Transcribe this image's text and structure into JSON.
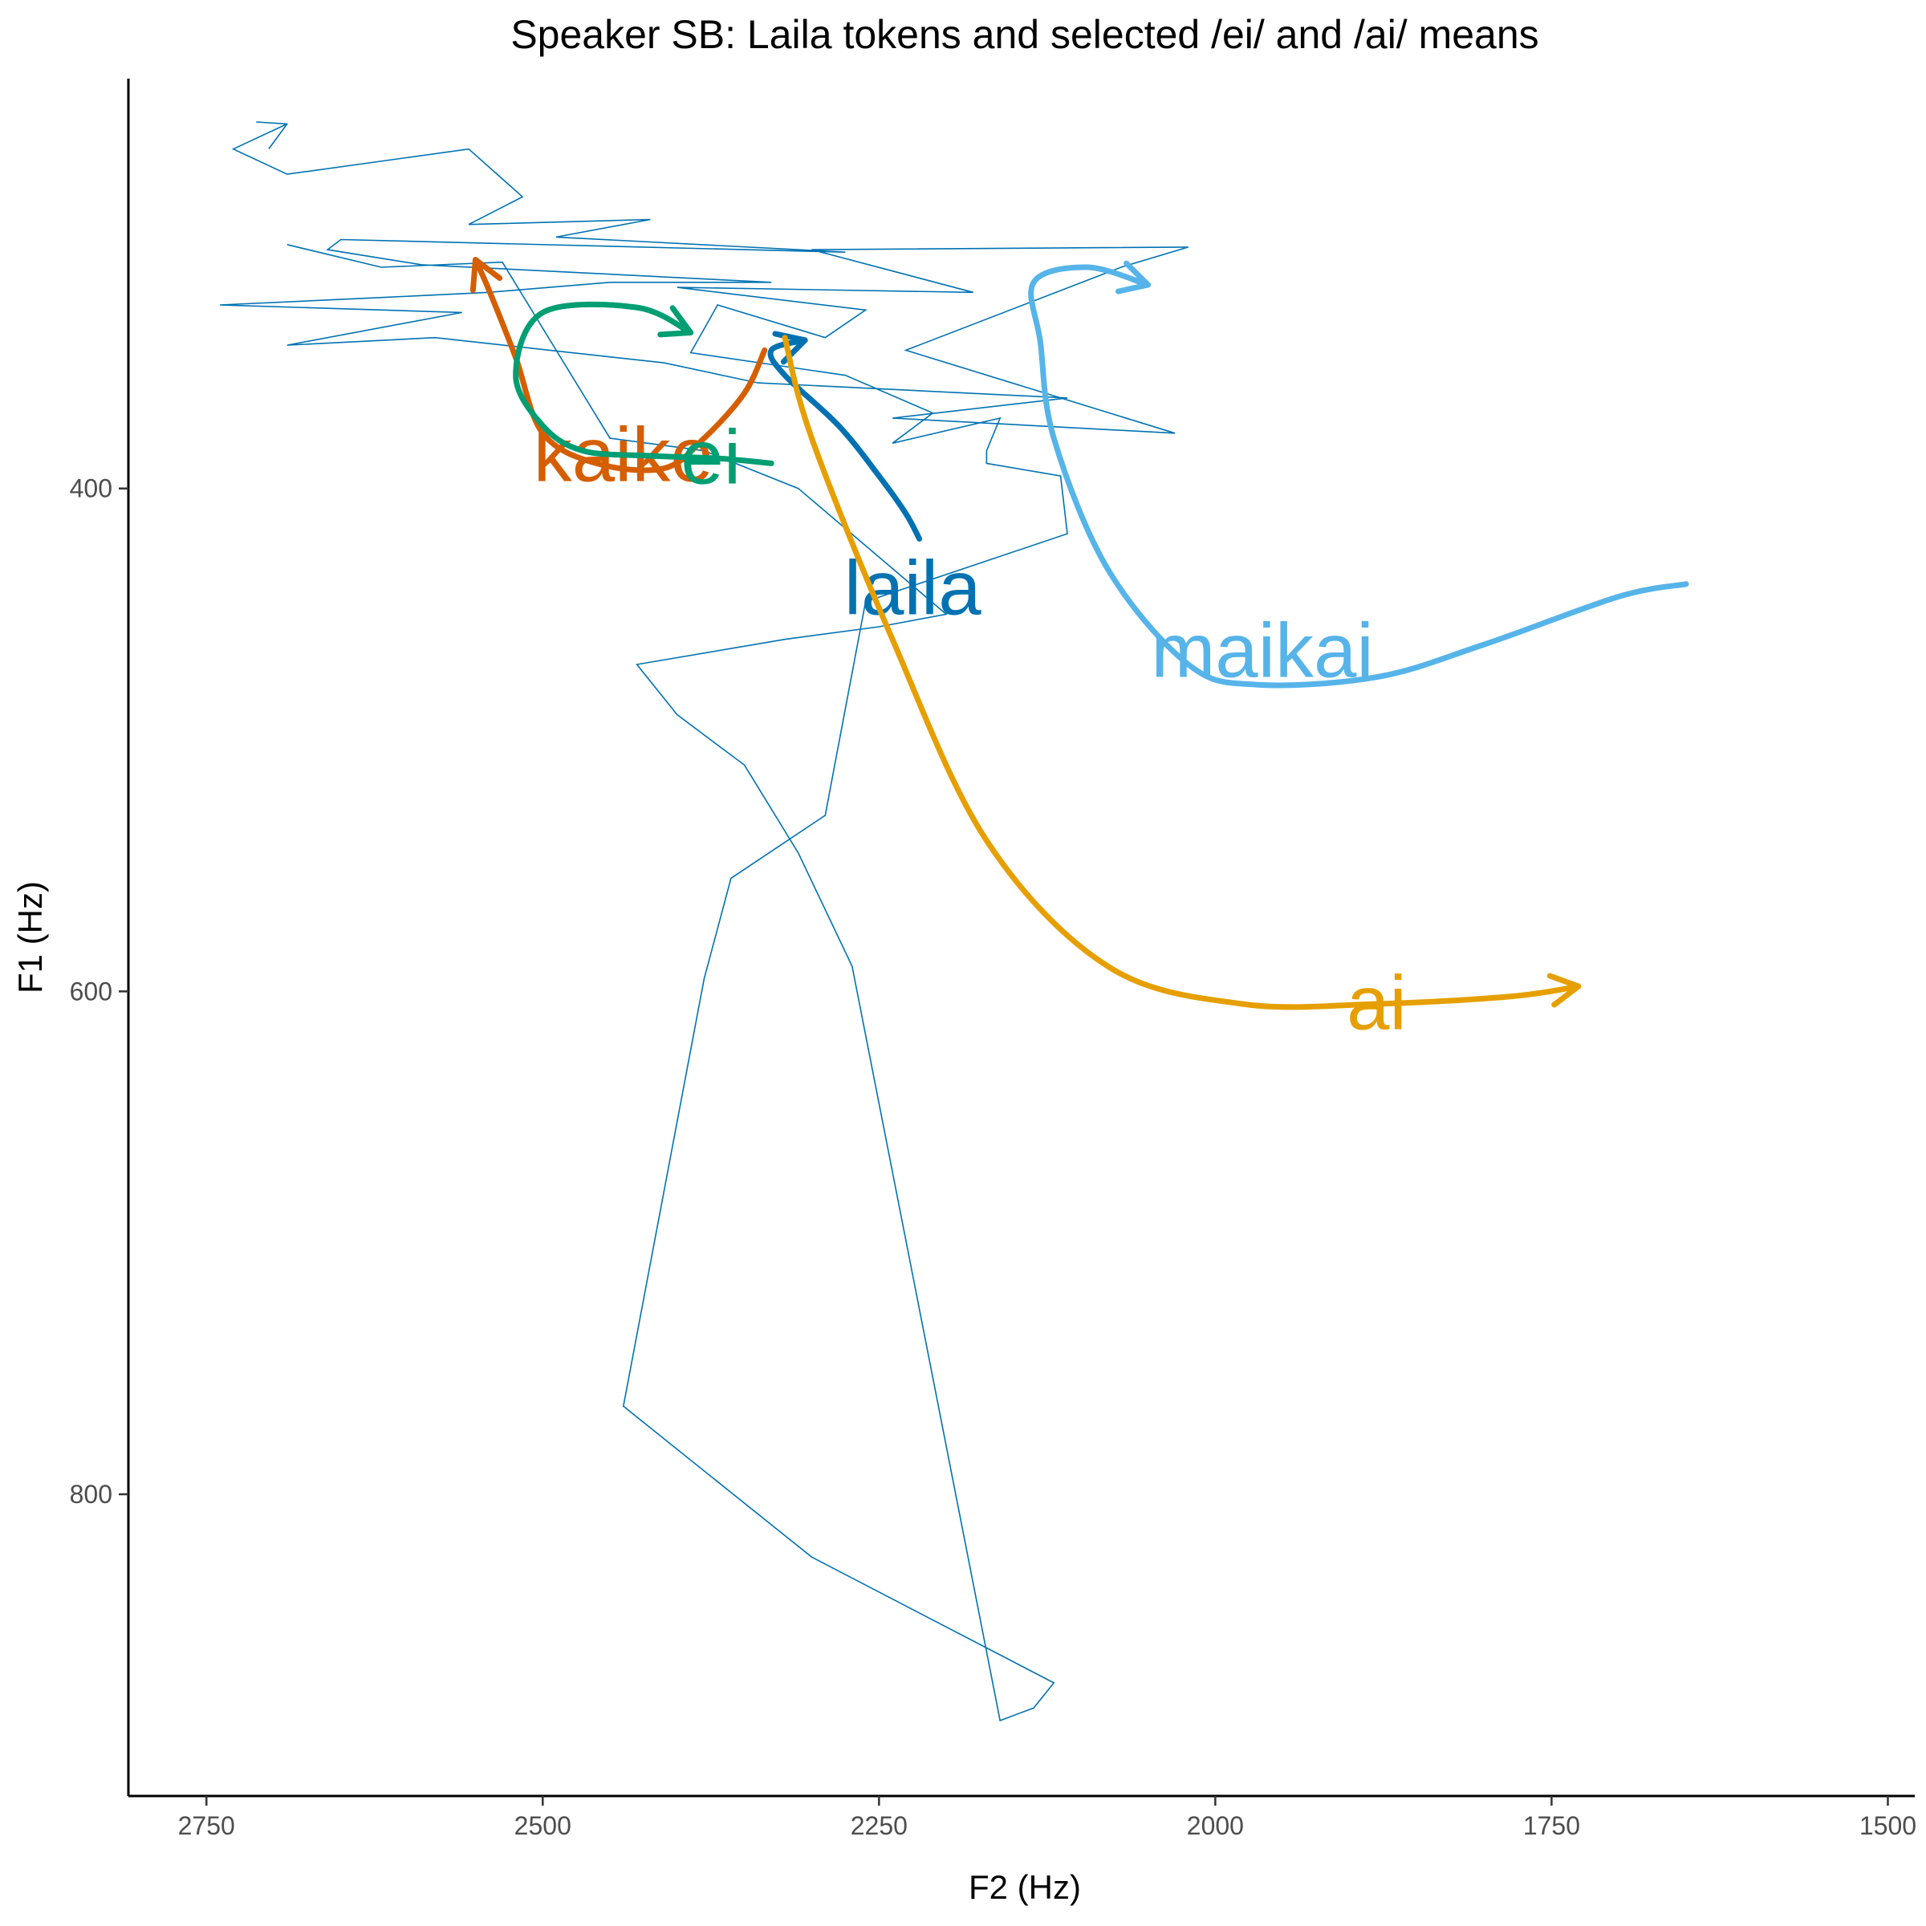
{
  "chart_data": {
    "type": "line",
    "title": "Speaker SB: Laila tokens and selected /ei/ and /ai/ means",
    "xlabel": "F2 (Hz)",
    "ylabel": "F1 (Hz)",
    "x_reversed": true,
    "y_reversed": true,
    "xlim": [
      2808,
      1480
    ],
    "ylim": [
      237,
      920
    ],
    "x_ticks": [
      2750,
      2500,
      2250,
      2000,
      1750,
      1500
    ],
    "y_ticks": [
      400,
      600,
      800
    ],
    "grid": false,
    "legend": "none",
    "tokens": {
      "color": "#0072B2",
      "points": [
        [
          2690,
          255
        ],
        [
          2730,
          265
        ],
        [
          2690,
          275
        ],
        [
          2555,
          265
        ],
        [
          2515,
          284
        ],
        [
          2555,
          295
        ],
        [
          2420,
          293
        ],
        [
          2490,
          300
        ],
        [
          2275,
          306
        ],
        [
          2650,
          301
        ],
        [
          2660,
          305
        ],
        [
          2590,
          311
        ],
        [
          2330,
          318
        ],
        [
          2450,
          318
        ],
        [
          2540,
          322
        ],
        [
          2618,
          324
        ],
        [
          2740,
          327
        ],
        [
          2560,
          330
        ],
        [
          2690,
          343
        ],
        [
          2580,
          340
        ],
        [
          2410,
          350
        ],
        [
          2340,
          358
        ],
        [
          2110,
          364
        ],
        [
          2240,
          372
        ],
        [
          2030,
          378
        ],
        [
          2230,
          345
        ],
        [
          2070,
          312
        ],
        [
          2020,
          304
        ],
        [
          2300,
          305
        ],
        [
          2180,
          322
        ],
        [
          2400,
          320
        ],
        [
          2260,
          329
        ],
        [
          2290,
          340
        ],
        [
          2370,
          327
        ],
        [
          2390,
          346
        ],
        [
          2275,
          355
        ],
        [
          2210,
          370
        ],
        [
          2240,
          382
        ],
        [
          2160,
          372
        ],
        [
          2170,
          385
        ],
        [
          2170,
          390
        ],
        [
          2115,
          395
        ],
        [
          2110,
          418
        ],
        [
          2260,
          445
        ],
        [
          2290,
          530
        ],
        [
          2360,
          555
        ],
        [
          2380,
          595
        ],
        [
          2440,
          765
        ],
        [
          2300,
          825
        ],
        [
          2120,
          875
        ],
        [
          2135,
          885
        ],
        [
          2160,
          890
        ],
        [
          2270,
          590
        ],
        [
          2310,
          545
        ],
        [
          2350,
          510
        ],
        [
          2400,
          490
        ],
        [
          2430,
          470
        ],
        [
          2320,
          460
        ],
        [
          2250,
          455
        ],
        [
          2200,
          450
        ],
        [
          2310,
          400
        ],
        [
          2380,
          385
        ],
        [
          2450,
          380
        ],
        [
          2530,
          310
        ],
        [
          2620,
          312
        ],
        [
          2690,
          303
        ]
      ]
    },
    "means": [
      {
        "name": "kaike",
        "color": "#D55E00",
        "label": "kaike",
        "label_pos": [
          2440,
          397
        ],
        "points": [
          [
            2550,
            309
          ],
          [
            2540,
            321
          ],
          [
            2520,
            348
          ],
          [
            2500,
            378
          ],
          [
            2460,
            390
          ],
          [
            2410,
            392
          ],
          [
            2380,
            380
          ],
          [
            2350,
            362
          ],
          [
            2335,
            345
          ]
        ],
        "arrow_at_start": true
      },
      {
        "name": "ei",
        "color": "#009E73",
        "label": "ei",
        "label_pos": [
          2375,
          398
        ],
        "points": [
          [
            2330,
            390
          ],
          [
            2370,
            388
          ],
          [
            2420,
            387
          ],
          [
            2470,
            385
          ],
          [
            2500,
            375
          ],
          [
            2520,
            355
          ],
          [
            2500,
            330
          ],
          [
            2430,
            328
          ],
          [
            2390,
            338
          ]
        ],
        "arrow_at_start": false
      },
      {
        "name": "laila",
        "color": "#0072B2",
        "label": "laila",
        "label_pos": [
          2225,
          450
        ],
        "points": [
          [
            2220,
            420
          ],
          [
            2230,
            410
          ],
          [
            2250,
            395
          ],
          [
            2280,
            375
          ],
          [
            2320,
            355
          ],
          [
            2330,
            345
          ],
          [
            2305,
            341
          ]
        ],
        "arrow_at_start": false
      },
      {
        "name": "ai",
        "color": "#E69F00",
        "label": "ai",
        "label_pos": [
          1880,
          615
        ],
        "points": [
          [
            2320,
            340
          ],
          [
            2300,
            380
          ],
          [
            2240,
            460
          ],
          [
            2170,
            540
          ],
          [
            2080,
            590
          ],
          [
            1980,
            605
          ],
          [
            1880,
            605
          ],
          [
            1780,
            602
          ],
          [
            1730,
            598
          ]
        ],
        "arrow_at_start": false
      },
      {
        "name": "maikai",
        "color": "#56B4E9",
        "label": "maikai",
        "label_pos": [
          1965,
          475
        ],
        "points": [
          [
            1650,
            438
          ],
          [
            1700,
            443
          ],
          [
            1800,
            462
          ],
          [
            1880,
            475
          ],
          [
            1970,
            478
          ],
          [
            2020,
            470
          ],
          [
            2080,
            432
          ],
          [
            2120,
            380
          ],
          [
            2130,
            342
          ],
          [
            2135,
            318
          ],
          [
            2095,
            312
          ],
          [
            2050,
            319
          ]
        ],
        "arrow_at_start": false
      }
    ]
  }
}
